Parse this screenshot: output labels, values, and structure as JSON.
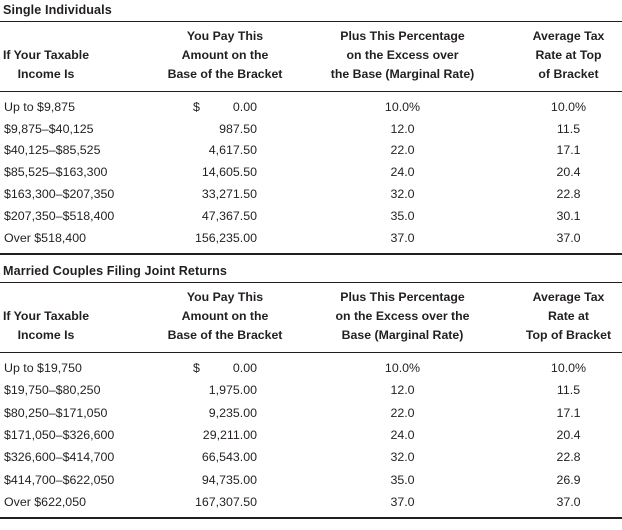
{
  "page": {
    "background_color": "#ffffff",
    "text_color": "#231f20",
    "rule_color": "#231f20"
  },
  "tables": [
    {
      "title": "Single Individuals",
      "headers": {
        "col1": [
          "If Your Taxable",
          "Income Is"
        ],
        "col2": [
          "You Pay This",
          "Amount on the",
          "Base of the Bracket"
        ],
        "col3": [
          "Plus This Percentage",
          "on the Excess over",
          "the Base (Marginal Rate)"
        ],
        "col4": [
          "Average Tax",
          "Rate at Top",
          "of Bracket"
        ]
      },
      "rows": [
        {
          "income": "Up to $9,875",
          "currency": "$",
          "amount": "0.00",
          "marginal": "10.0%",
          "average": "10.0%"
        },
        {
          "income": "$9,875–$40,125",
          "amount": "987.50",
          "marginal": "12.0",
          "average": "11.5"
        },
        {
          "income": "$40,125–$85,525",
          "amount": "4,617.50",
          "marginal": "22.0",
          "average": "17.1"
        },
        {
          "income": "$85,525–$163,300",
          "amount": "14,605.50",
          "marginal": "24.0",
          "average": "20.4"
        },
        {
          "income": "$163,300–$207,350",
          "amount": "33,271.50",
          "marginal": "32.0",
          "average": "22.8"
        },
        {
          "income": "$207,350–$518,400",
          "amount": "47,367.50",
          "marginal": "35.0",
          "average": "30.1"
        },
        {
          "income": "Over $518,400",
          "amount": "156,235.00",
          "marginal": "37.0",
          "average": "37.0"
        }
      ]
    },
    {
      "title": "Married Couples Filing Joint Returns",
      "headers": {
        "col1": [
          "If Your Taxable",
          "Income Is"
        ],
        "col2": [
          "You Pay This",
          "Amount on the",
          "Base of the Bracket"
        ],
        "col3": [
          "Plus This Percentage",
          "on the Excess over the",
          "Base (Marginal Rate)"
        ],
        "col4": [
          "Average Tax",
          "Rate at",
          "Top of Bracket"
        ]
      },
      "rows": [
        {
          "income": "Up to $19,750",
          "currency": "$",
          "amount": "0.00",
          "marginal": "10.0%",
          "average": "10.0%"
        },
        {
          "income": "$19,750–$80,250",
          "amount": "1,975.00",
          "marginal": "12.0",
          "average": "11.5"
        },
        {
          "income": "$80,250–$171,050",
          "amount": "9,235.00",
          "marginal": "22.0",
          "average": "17.1"
        },
        {
          "income": "$171,050–$326,600",
          "amount": "29,211.00",
          "marginal": "24.0",
          "average": "20.4"
        },
        {
          "income": "$326,600–$414,700",
          "amount": "66,543.00",
          "marginal": "32.0",
          "average": "22.8"
        },
        {
          "income": "$414,700–$622,050",
          "amount": "94,735.00",
          "marginal": "35.0",
          "average": "26.9"
        },
        {
          "income": "Over $622,050",
          "amount": "167,307.50",
          "marginal": "37.0",
          "average": "37.0"
        }
      ]
    }
  ]
}
